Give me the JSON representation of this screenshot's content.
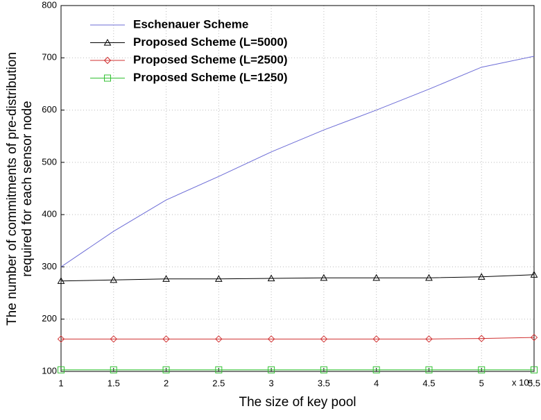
{
  "chart_data": {
    "type": "line",
    "xlabel": "The size of key pool",
    "x_multiplier": "x 10⁴",
    "ylabel": [
      "The number of commitments of pre-distribution",
      "required for each sensor node"
    ],
    "x": [
      1,
      1.5,
      2,
      2.5,
      3,
      3.5,
      4,
      4.5,
      5,
      5.5
    ],
    "series": [
      {
        "name": "Eschenauer Scheme",
        "color": "#6b6bd6",
        "marker": "none",
        "values": [
          300,
          368,
          428,
          473,
          520,
          562,
          600,
          640,
          682,
          703
        ]
      },
      {
        "name": "Proposed Scheme (L=5000)",
        "color": "#000000",
        "marker": "triangle",
        "values": [
          273,
          275,
          277,
          277,
          278,
          279,
          279,
          279,
          281,
          285
        ]
      },
      {
        "name": "Proposed Scheme (L=2500)",
        "color": "#d03030",
        "marker": "diamond",
        "values": [
          162,
          162,
          162,
          162,
          162,
          162,
          162,
          162,
          163,
          165
        ]
      },
      {
        "name": "Proposed Scheme (L=1250)",
        "color": "#30c030",
        "marker": "square",
        "values": [
          103,
          103,
          103,
          103,
          103,
          103,
          103,
          103,
          103,
          103
        ]
      }
    ],
    "xlim": [
      1,
      5.5
    ],
    "xticks": [
      1,
      1.5,
      2,
      2.5,
      3,
      3.5,
      4,
      4.5,
      5,
      5.5
    ],
    "ylim": [
      100,
      800
    ],
    "yticks": [
      100,
      200,
      300,
      400,
      500,
      600,
      700,
      800
    ],
    "grid": true,
    "legend": "upper-left"
  }
}
